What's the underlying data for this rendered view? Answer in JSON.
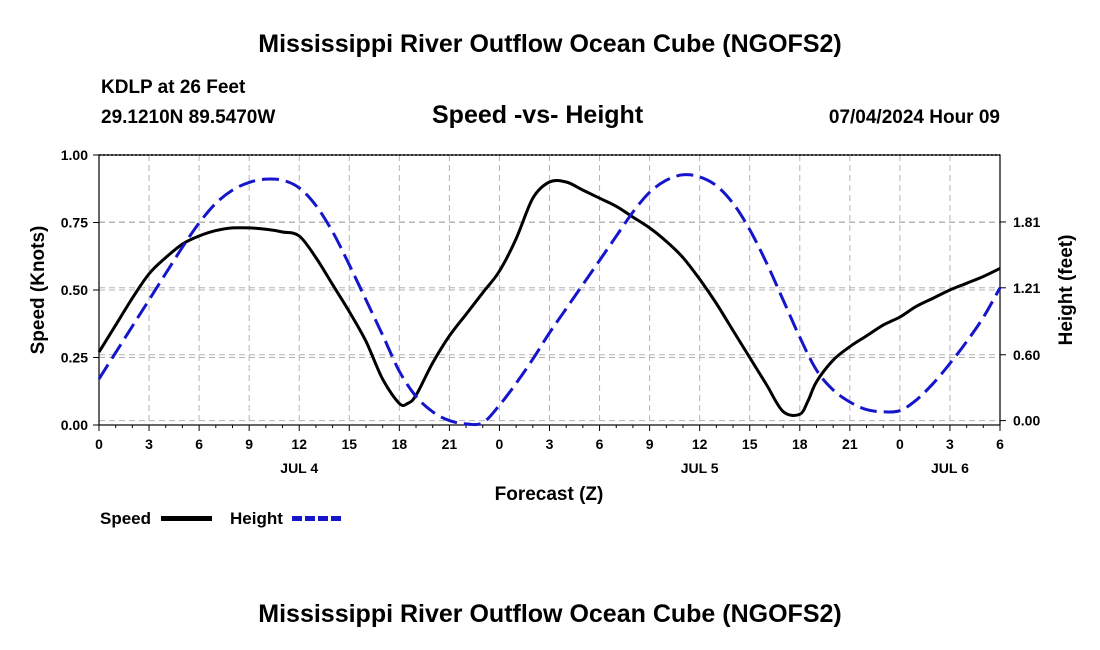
{
  "page": {
    "title": "Mississippi River Outflow Ocean Cube (NGOFS2)",
    "footer_title": "Mississippi River Outflow Ocean Cube (NGOFS2)",
    "station": "KDLP at 26 Feet",
    "coords": "29.1210N  89.5470W",
    "subtitle": "Speed -vs- Height",
    "datetime": "07/04/2024 Hour 09"
  },
  "legend": {
    "speed_label": "Speed",
    "height_label": "Height"
  },
  "colors": {
    "speed": "#000000",
    "height": "#1515cc",
    "grid": "#b4b4b4"
  },
  "chart_data": {
    "type": "line",
    "title": "Speed -vs- Height",
    "xlabel": "Forecast (Z)",
    "ylabel": "Speed (Knots)",
    "y2label": "Height (feet)",
    "xlim": [
      0,
      54
    ],
    "ylim": [
      0,
      1.0
    ],
    "y2lim": [
      -0.04,
      2.42
    ],
    "x_ticks": [
      0,
      3,
      6,
      9,
      12,
      15,
      18,
      21,
      24,
      27,
      30,
      33,
      36,
      39,
      42,
      45,
      48,
      51,
      54
    ],
    "x_tick_labels": [
      "0",
      "3",
      "6",
      "9",
      "12",
      "15",
      "18",
      "21",
      "0",
      "3",
      "6",
      "9",
      "12",
      "15",
      "18",
      "21",
      "0",
      "3",
      "6"
    ],
    "day_labels": [
      {
        "x": 12,
        "label": "JUL 4"
      },
      {
        "x": 36,
        "label": "JUL 5"
      },
      {
        "x": 51,
        "label": "JUL 6"
      }
    ],
    "y_ticks": [
      0.0,
      0.25,
      0.5,
      0.75,
      1.0
    ],
    "y_tick_labels": [
      "0.00",
      "0.25",
      "0.50",
      "0.75",
      "1.00"
    ],
    "y2_ticks": [
      0.0,
      0.6,
      1.21,
      1.81
    ],
    "y2_tick_labels": [
      "0.00",
      "0.60",
      "1.21",
      "1.81"
    ],
    "grid": true,
    "series": [
      {
        "name": "Speed",
        "axis": "left",
        "style": "solid",
        "x": [
          0,
          1,
          2,
          3,
          4,
          5,
          6,
          7,
          8,
          9,
          10,
          11,
          12,
          13,
          14,
          15,
          16,
          17,
          18,
          18.5,
          19,
          20,
          21,
          22,
          23,
          24,
          25,
          26,
          27,
          28,
          29,
          30,
          31,
          32,
          33,
          34,
          35,
          36,
          37,
          38,
          39,
          40,
          41,
          42,
          42.5,
          43,
          44,
          45,
          46,
          47,
          48,
          49,
          50,
          51,
          52,
          53,
          54
        ],
        "values": [
          0.27,
          0.37,
          0.47,
          0.56,
          0.62,
          0.67,
          0.7,
          0.72,
          0.73,
          0.73,
          0.725,
          0.715,
          0.7,
          0.62,
          0.52,
          0.42,
          0.31,
          0.17,
          0.08,
          0.08,
          0.11,
          0.23,
          0.33,
          0.41,
          0.49,
          0.57,
          0.69,
          0.84,
          0.9,
          0.9,
          0.87,
          0.84,
          0.81,
          0.77,
          0.73,
          0.68,
          0.62,
          0.54,
          0.45,
          0.35,
          0.25,
          0.15,
          0.05,
          0.04,
          0.09,
          0.16,
          0.24,
          0.29,
          0.33,
          0.37,
          0.4,
          0.44,
          0.47,
          0.5,
          0.525,
          0.55,
          0.58
        ]
      },
      {
        "name": "Height",
        "axis": "right",
        "style": "dashed",
        "x": [
          0,
          1,
          2,
          3,
          4,
          5,
          6,
          7,
          8,
          9,
          10,
          11,
          12,
          13,
          14,
          15,
          16,
          17,
          18,
          19,
          20,
          21,
          22,
          23,
          24,
          25,
          26,
          27,
          28,
          29,
          30,
          31,
          32,
          33,
          34,
          35,
          36,
          37,
          38,
          39,
          40,
          41,
          42,
          43,
          44,
          45,
          46,
          47,
          48,
          49,
          50,
          51,
          52,
          53,
          54
        ],
        "values": [
          0.38,
          0.62,
          0.86,
          1.1,
          1.34,
          1.58,
          1.8,
          1.98,
          2.1,
          2.17,
          2.2,
          2.19,
          2.12,
          1.96,
          1.72,
          1.42,
          1.1,
          0.78,
          0.45,
          0.22,
          0.08,
          0.0,
          -0.03,
          -0.02,
          0.14,
          0.34,
          0.56,
          0.8,
          1.02,
          1.24,
          1.46,
          1.68,
          1.9,
          2.08,
          2.19,
          2.24,
          2.22,
          2.14,
          1.98,
          1.74,
          1.44,
          1.1,
          0.76,
          0.46,
          0.28,
          0.17,
          0.1,
          0.08,
          0.09,
          0.19,
          0.34,
          0.52,
          0.72,
          0.94,
          1.21
        ]
      }
    ]
  }
}
